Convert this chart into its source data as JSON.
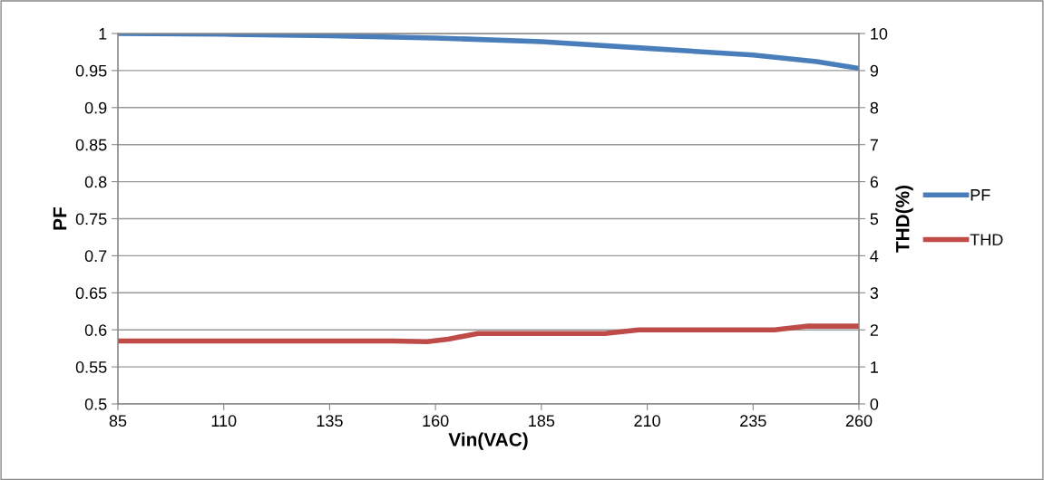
{
  "chart_data": {
    "type": "line",
    "xlabel": "Vin(VAC)",
    "ylabel": "PF",
    "y2label": "THD(%)",
    "xlim": [
      85,
      260
    ],
    "xticks": [
      85,
      110,
      135,
      160,
      185,
      210,
      235,
      260
    ],
    "ylim": [
      0.5,
      1
    ],
    "yticks": [
      0.5,
      0.55,
      0.6,
      0.65,
      0.7,
      0.75,
      0.8,
      0.85,
      0.9,
      0.95,
      1
    ],
    "y2lim": [
      0,
      10
    ],
    "y2ticks": [
      0,
      1,
      2,
      3,
      4,
      5,
      6,
      7,
      8,
      9,
      10
    ],
    "grid": "y",
    "legend": "right",
    "marker": "none",
    "line_style": "solid",
    "series": [
      {
        "name": "PF",
        "color": "#4a7ebb",
        "x": [
          85,
          110,
          135,
          160,
          185,
          210,
          235,
          250,
          260
        ],
        "values": [
          1.0,
          0.999,
          0.997,
          0.994,
          0.989,
          0.98,
          0.971,
          0.962,
          0.953
        ]
      },
      {
        "name": "THD",
        "color": "#be4b48",
        "axis": "y2",
        "x": [
          85,
          110,
          135,
          150,
          158,
          163,
          170,
          180,
          195,
          200,
          208,
          215,
          240,
          248,
          255,
          260
        ],
        "values": [
          1.7,
          1.7,
          1.7,
          1.7,
          1.68,
          1.75,
          1.9,
          1.9,
          1.9,
          1.9,
          2.0,
          2.0,
          2.0,
          2.1,
          2.1,
          2.1
        ]
      }
    ]
  }
}
